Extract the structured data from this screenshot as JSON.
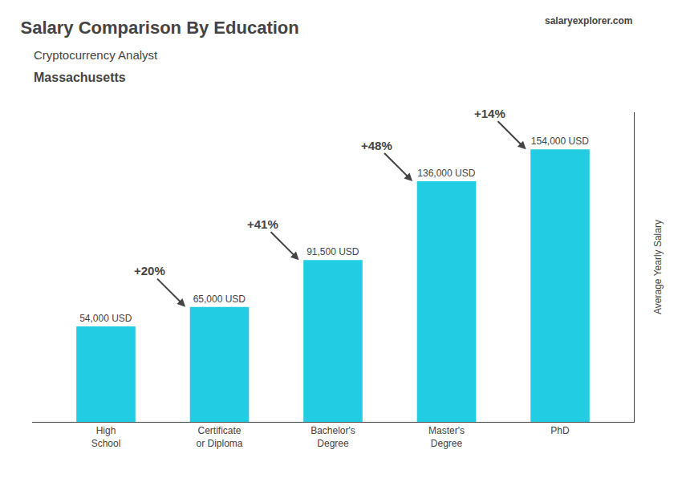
{
  "chart_data": {
    "type": "bar",
    "title": "Salary Comparison By Education",
    "subtitle": [
      "Cryptocurrency Analyst",
      "Massachusetts"
    ],
    "source": "salaryexplorer.com",
    "ylabel": "Average Yearly Salary",
    "categories": [
      "High\nSchool",
      "Certificate\nor Diploma",
      "Bachelor's\nDegree",
      "Master's\nDegree",
      "PhD"
    ],
    "values": [
      54000,
      65000,
      91500,
      136000,
      154000
    ],
    "value_labels": [
      "54,000 USD",
      "65,000 USD",
      "91,500 USD",
      "136,000 USD",
      "154,000 USD"
    ],
    "annotations": [
      "+20%",
      "+41%",
      "+48%",
      "+14%"
    ],
    "color": "#22cce2",
    "ylim": [
      0,
      175000
    ],
    "yticks": [],
    "tick_labels": "x",
    "grid": false,
    "data_labels": true
  }
}
